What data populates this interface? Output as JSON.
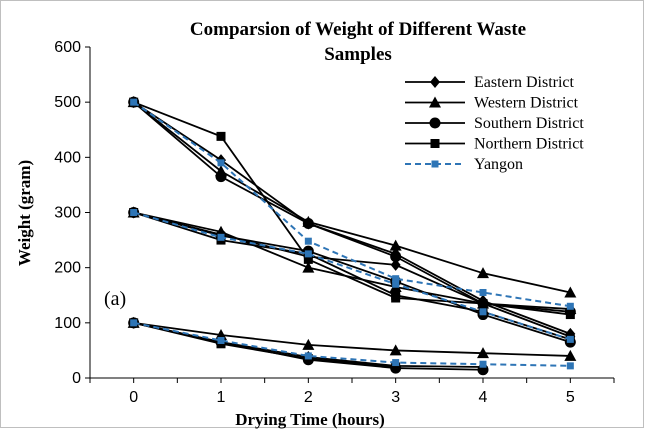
{
  "chart_data": {
    "type": "line",
    "title_line1": "Comparsion  of Weight of Different Waste",
    "title_line2": "Samples",
    "xlabel": "Drying Time (hours)",
    "ylabel": "Weight (gram)",
    "annotation": "(a)",
    "x": [
      0,
      1,
      2,
      3,
      4,
      5
    ],
    "xlim": [
      -0.5,
      5.5
    ],
    "ylim": [
      0,
      600
    ],
    "yticks": [
      0,
      100,
      200,
      300,
      400,
      500,
      600
    ],
    "grid": false,
    "legend_position": "top-right",
    "series": [
      {
        "name": "Eastern District",
        "marker": "diamond",
        "color": "#000000",
        "dashed": false,
        "groups": [
          [
            500,
            395,
            280,
            225,
            140,
            80
          ],
          [
            300,
            260,
            220,
            205,
            135,
            75
          ],
          [
            100,
            65,
            38,
            22,
            20,
            null
          ]
        ]
      },
      {
        "name": "Western District",
        "marker": "triangle",
        "color": "#000000",
        "dashed": false,
        "groups": [
          [
            500,
            375,
            283,
            240,
            190,
            155
          ],
          [
            300,
            265,
            200,
            165,
            135,
            125
          ],
          [
            100,
            78,
            60,
            50,
            45,
            40
          ]
        ]
      },
      {
        "name": "Southern District",
        "marker": "circle",
        "color": "#000000",
        "dashed": false,
        "groups": [
          [
            500,
            365,
            280,
            220,
            135,
            120
          ],
          [
            300,
            258,
            230,
            175,
            115,
            65
          ],
          [
            100,
            65,
            33,
            18,
            15,
            null
          ]
        ]
      },
      {
        "name": "Northern District",
        "marker": "square",
        "color": "#000000",
        "dashed": false,
        "groups": [
          [
            500,
            438,
            215,
            145,
            135,
            115
          ],
          [
            300,
            250,
            225,
            150,
            120,
            70
          ],
          [
            100,
            62,
            35,
            20,
            null,
            null
          ]
        ]
      },
      {
        "name": "Yangon",
        "marker": "square",
        "color": "#2e75b6",
        "dashed": true,
        "groups": [
          [
            500,
            390,
            248,
            180,
            155,
            130
          ],
          [
            300,
            255,
            225,
            170,
            120,
            70
          ],
          [
            100,
            68,
            40,
            28,
            25,
            22
          ]
        ]
      }
    ]
  }
}
